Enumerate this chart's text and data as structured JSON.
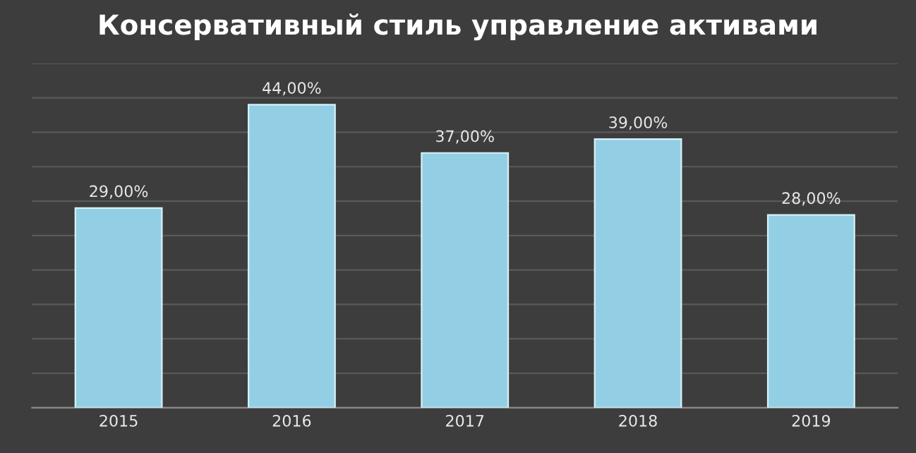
{
  "chart_data": {
    "type": "bar",
    "title": "Консервативный стиль управление активами",
    "categories": [
      "2015",
      "2016",
      "2017",
      "2018",
      "2019"
    ],
    "values": [
      29,
      44,
      37,
      39,
      28
    ],
    "value_labels": [
      "29,00%",
      "44,00%",
      "37,00%",
      "39,00%",
      "28,00%"
    ],
    "color": "#93cfe4",
    "ylim": [
      0,
      50
    ],
    "yticks": [
      {
        "value": 0,
        "label": null
      },
      {
        "value": 5,
        "label": null
      },
      {
        "value": 10,
        "label": null
      },
      {
        "value": 15,
        "label": null
      },
      {
        "value": 20,
        "label": null
      },
      {
        "value": 25,
        "label": null
      },
      {
        "value": 30,
        "label": null
      },
      {
        "value": 35,
        "label": null
      },
      {
        "value": 40,
        "label": null
      },
      {
        "value": 45,
        "label": null
      },
      {
        "value": 50,
        "label": null
      }
    ],
    "grid": "y",
    "tick_labels": "x"
  }
}
